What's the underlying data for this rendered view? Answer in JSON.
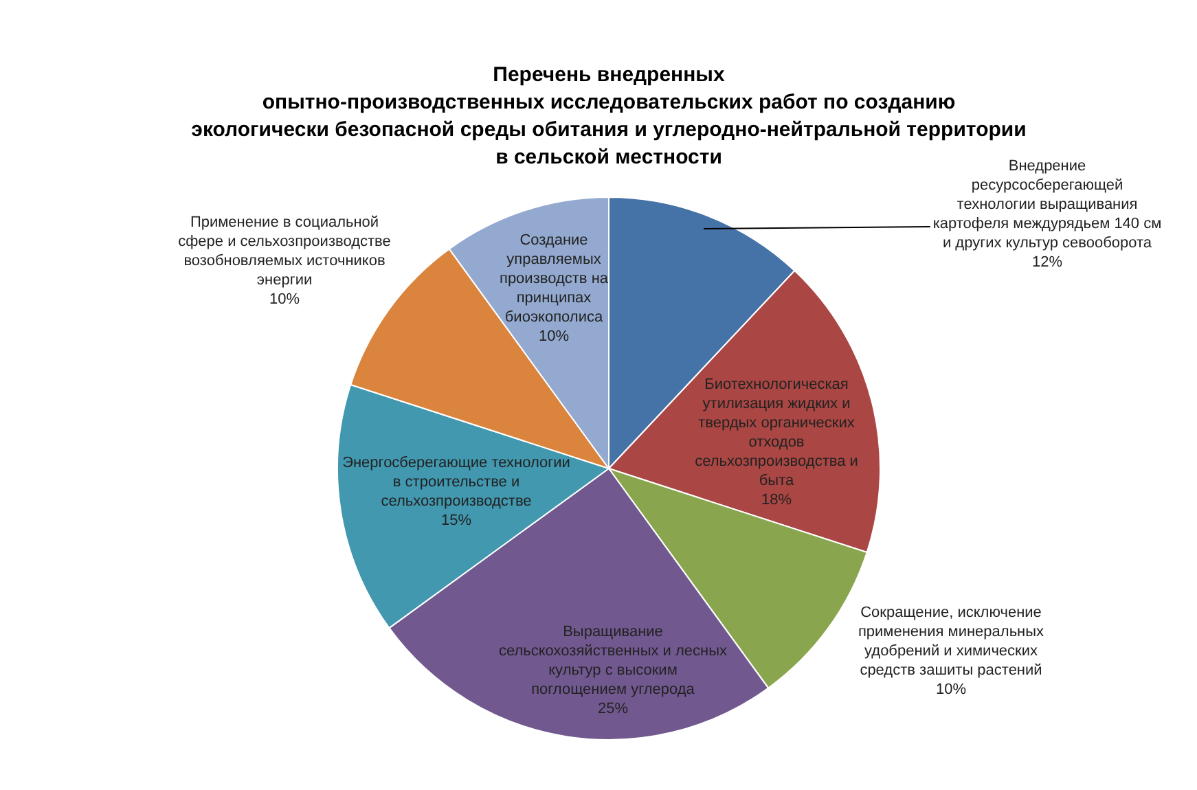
{
  "chart_data": {
    "type": "pie",
    "title": "Перечень внедренных\nопытно-производственных исследовательских работ по созданию\nэкологически безопасной среды обитания и углеродно-нейтральной территории\nв сельской местности",
    "categories": [
      "Внедрение\nресурсосберегающей\nтехнологии выращивания\nкартофеля междурядьем 140 см\nи других культур севооборота",
      "Биотехнологическая\nутилизация жидких и\nтвердых органических\nотходов\nсельхозпроизводства и\nбыта",
      "Сокращение, исключение\nприменения минеральных\nудобрений и химических\nсредств зашиты растений",
      "Выращивание\nсельскохозяйственных и лесных\nкультур с высоким\nпоглощением углерода",
      "Энергосберегающие технологии\nв строительстве и\nсельхозпроизводстве",
      "Применение в социальной\nсфере и сельхозпроизводстве\nвозобновляемых источников\nэнергии",
      "Создание\nуправляемых\nпроизводств на\nпринципах\nбиоэкополиса"
    ],
    "values": [
      12,
      18,
      10,
      25,
      15,
      10,
      10
    ],
    "value_labels": [
      "12%",
      "18%",
      "10%",
      "25%",
      "15%",
      "10%",
      "10%"
    ],
    "colors": [
      "#4572a7",
      "#aa4643",
      "#89a54e",
      "#71588f",
      "#4198af",
      "#db843d",
      "#93a9cf"
    ],
    "legend": false
  }
}
